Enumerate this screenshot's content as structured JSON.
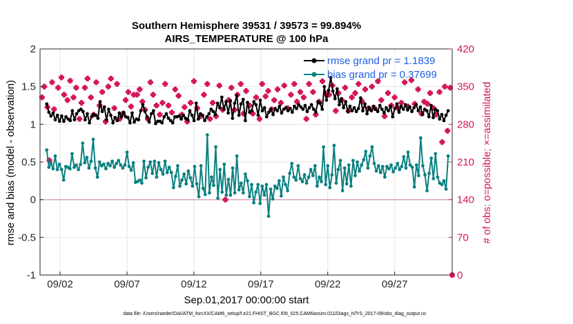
{
  "chart_data": {
    "type": "line",
    "title": "Southern Hemisphere 39531 / 39573 = 99.894%",
    "subtitle": "AIRS_TEMPERATURE @ 100 hPa",
    "xlabel": "Sep.01,2017 00:00:00 start",
    "ylabel_left": "rmse and bias (model - observation)",
    "ylabel_right": "# of obs: o=possible; ×=assimilated",
    "ylim_left": [
      -1,
      2
    ],
    "ylim_right": [
      0,
      420
    ],
    "yticks_left": [
      "-1",
      "-0.5",
      "0",
      "0.5",
      "1",
      "1.5",
      "2"
    ],
    "yticks_right": [
      "0",
      "70",
      "140",
      "210",
      "280",
      "350",
      "420"
    ],
    "xlim_days": [
      0.5,
      31.3
    ],
    "xticks": [
      {
        "label": "09/02",
        "day": 2
      },
      {
        "label": "09/07",
        "day": 7
      },
      {
        "label": "09/12",
        "day": 12
      },
      {
        "label": "09/17",
        "day": 17
      },
      {
        "label": "09/22",
        "day": 22
      },
      {
        "label": "09/27",
        "day": 27
      }
    ],
    "grid": true,
    "legend_position": "top-right",
    "colors": {
      "rmse": "#000000",
      "bias": "#0a8080",
      "obs": "#d4145a",
      "zero": "#d9a0b0"
    },
    "series": [
      {
        "name": "rmse grand pr = 1.1839",
        "values": [
          1.27,
          1.16,
          1.11,
          1.15,
          1.06,
          1.12,
          1.04,
          1.11,
          1.04,
          1.1,
          1.07,
          1.05,
          1.18,
          1.06,
          1.14,
          1.18,
          1.2,
          1.17,
          1.06,
          1.14,
          1.02,
          1.1,
          1.13,
          1.12,
          1.08,
          1.3,
          1.17,
          1.23,
          1.06,
          1.2,
          1.12,
          1.02,
          1.09,
          1.05,
          1.15,
          1.1,
          1.16,
          1.1,
          1.09,
          1.02,
          1.15,
          1.03,
          1.07,
          1.06,
          1.18,
          1.26,
          1.17,
          1.1,
          1.03,
          1.14,
          1.18,
          1.01,
          1.04,
          1.04,
          1.02,
          1.1,
          1.14,
          1.08,
          1.05,
          1.02,
          1.1,
          1.1,
          1.11,
          1.07,
          1.12,
          1.08,
          1.06,
          1.18,
          1.12,
          1.05,
          1.28,
          1.07,
          1.14,
          1.12,
          1.05,
          1.1,
          1.14,
          1.2,
          1.17,
          1.13,
          1.28,
          1.22,
          1.36,
          1.2,
          1.3,
          1.15,
          1.31,
          1.08,
          1.28,
          1.38,
          1.12,
          1.27,
          1.33,
          1.05,
          1.29,
          1.16,
          1.18,
          1.3,
          1.26,
          1.12,
          1.32,
          1.18,
          1.22,
          1.1,
          1.16,
          1.2,
          1.13,
          1.21,
          1.18,
          1.24,
          1.15,
          1.2,
          1.22,
          1.18,
          1.21,
          1.16,
          1.24,
          1.21,
          1.26,
          1.23,
          1.2,
          1.25,
          1.17,
          1.22,
          1.26,
          1.2,
          1.16,
          1.3,
          1.28,
          1.2,
          1.5,
          1.32,
          1.45,
          1.62,
          1.44,
          1.34,
          1.47,
          1.26,
          1.34,
          1.22,
          1.3,
          1.17,
          1.24,
          1.18,
          1.22,
          1.17,
          1.21,
          1.35,
          1.18,
          1.27,
          1.14,
          1.22,
          1.18,
          1.24,
          1.2,
          1.17,
          1.25,
          1.2,
          1.15,
          1.22,
          1.18,
          1.24,
          1.1,
          1.21,
          1.27,
          1.16,
          1.24,
          1.2,
          1.26,
          1.19,
          1.23,
          1.17,
          1.22,
          1.26,
          1.18,
          1.23,
          1.13,
          1.2,
          1.18,
          1.1,
          1.25,
          1.09,
          1.2,
          1.18,
          1.07,
          1.13,
          1.05,
          1.12,
          1.18
        ]
      },
      {
        "name": "bias grand pr = 0.37699",
        "values": [
          0.66,
          0.43,
          0.48,
          0.41,
          0.58,
          0.4,
          0.47,
          0.4,
          0.26,
          0.44,
          0.43,
          0.41,
          0.61,
          0.43,
          0.46,
          0.4,
          0.47,
          0.75,
          0.49,
          0.56,
          0.42,
          0.51,
          0.8,
          0.42,
          0.3,
          0.5,
          0.45,
          0.47,
          0.41,
          0.48,
          0.45,
          0.51,
          0.43,
          0.48,
          0.52,
          0.46,
          0.42,
          0.46,
          0.63,
          0.44,
          0.39,
          0.49,
          0.23,
          0.24,
          0.26,
          0.22,
          0.51,
          0.29,
          0.43,
          0.5,
          0.35,
          0.51,
          0.3,
          0.49,
          0.4,
          0.34,
          0.51,
          0.36,
          0.43,
          0.36,
          0.16,
          0.31,
          0.45,
          0.18,
          0.26,
          0.34,
          0.21,
          0.38,
          0.29,
          0.18,
          0.44,
          0.21,
          0.04,
          0.45,
          0.15,
          0.07,
          0.86,
          0.09,
          0.3,
          0.19,
          0.7,
          0.02,
          0.4,
          0.1,
          0.47,
          0.06,
          0.27,
          0.06,
          0.42,
          0.09,
          0.58,
          0.13,
          0.22,
          0.09,
          0.34,
          0.25,
          0.04,
          0.2,
          -0.04,
          0.1,
          0.2,
          -0.05,
          0.18,
          0.06,
          0.2,
          -0.22,
          0.14,
          0.01,
          0.18,
          0.15,
          0.25,
          0.05,
          0.3,
          0.2,
          0.12,
          0.35,
          0.48,
          0.3,
          0.26,
          0.45,
          0.28,
          0.24,
          0.33,
          0.22,
          0.3,
          0.4,
          0.32,
          0.45,
          0.18,
          0.3,
          0.24,
          0.7,
          0.2,
          0.45,
          0.16,
          0.33,
          0.72,
          0.22,
          0.4,
          0.52,
          0.12,
          0.42,
          0.21,
          0.46,
          0.18,
          0.52,
          0.32,
          0.5,
          0.38,
          0.46,
          0.53,
          0.64,
          0.42,
          0.58,
          0.7,
          0.48,
          0.38,
          0.45,
          0.36,
          0.44,
          0.3,
          0.44,
          0.41,
          0.46,
          0.37,
          0.42,
          0.48,
          0.4,
          0.44,
          0.57,
          0.42,
          0.63,
          0.46,
          0.43,
          0.17,
          0.46,
          0.32,
          0.82,
          0.45,
          0.33,
          0.12,
          0.35,
          0.55,
          0.28,
          0.61,
          0.3,
          0.22,
          0.2,
          0.25,
          0.14,
          0.58
        ]
      }
    ],
    "obs_assimilated": [
      [
        0.65,
        330
      ],
      [
        0.82,
        350
      ],
      [
        1.05,
        312
      ],
      [
        1.2,
        213
      ],
      [
        1.4,
        358
      ],
      [
        1.55,
        308
      ],
      [
        1.85,
        348
      ],
      [
        2.1,
        367
      ],
      [
        2.3,
        335
      ],
      [
        2.55,
        325
      ],
      [
        2.75,
        361
      ],
      [
        3.0,
        330
      ],
      [
        3.2,
        348
      ],
      [
        3.45,
        290
      ],
      [
        3.6,
        320
      ],
      [
        3.85,
        348
      ],
      [
        4.05,
        365
      ],
      [
        4.3,
        330
      ],
      [
        4.5,
        298
      ],
      [
        4.7,
        358
      ],
      [
        4.95,
        315
      ],
      [
        5.15,
        340
      ],
      [
        5.4,
        285
      ],
      [
        5.6,
        350
      ],
      [
        5.8,
        365
      ],
      [
        6.05,
        310
      ],
      [
        6.25,
        355
      ],
      [
        6.45,
        290
      ],
      [
        6.7,
        300
      ],
      [
        6.9,
        325
      ],
      [
        7.1,
        340
      ],
      [
        7.3,
        313
      ],
      [
        7.5,
        335
      ],
      [
        7.75,
        335
      ],
      [
        7.95,
        345
      ],
      [
        8.15,
        322
      ],
      [
        8.35,
        307
      ],
      [
        8.55,
        290
      ],
      [
        8.75,
        358
      ],
      [
        8.95,
        335
      ],
      [
        9.2,
        315
      ],
      [
        9.45,
        298
      ],
      [
        9.65,
        320
      ],
      [
        9.85,
        355
      ],
      [
        10.1,
        315
      ],
      [
        10.35,
        302
      ],
      [
        10.6,
        345
      ],
      [
        10.85,
        333
      ],
      [
        11.1,
        298
      ],
      [
        11.3,
        312
      ],
      [
        11.5,
        285
      ],
      [
        11.75,
        320
      ],
      [
        12.0,
        360
      ],
      [
        12.25,
        310
      ],
      [
        12.5,
        295
      ],
      [
        12.75,
        335
      ],
      [
        13.0,
        355
      ],
      [
        13.2,
        290
      ],
      [
        13.4,
        320
      ],
      [
        13.65,
        295
      ],
      [
        13.9,
        352
      ],
      [
        14.15,
        307
      ],
      [
        14.35,
        140
      ],
      [
        14.6,
        325
      ],
      [
        14.8,
        348
      ],
      [
        15.05,
        307
      ],
      [
        15.25,
        335
      ],
      [
        15.5,
        355
      ],
      [
        15.7,
        300
      ],
      [
        15.9,
        342
      ],
      [
        16.15,
        315
      ],
      [
        16.4,
        300
      ],
      [
        16.65,
        330
      ],
      [
        16.9,
        290
      ],
      [
        17.1,
        355
      ],
      [
        17.35,
        332
      ],
      [
        17.55,
        342
      ],
      [
        17.8,
        308
      ],
      [
        18.0,
        325
      ],
      [
        18.25,
        345
      ],
      [
        18.5,
        320
      ],
      [
        18.75,
        352
      ],
      [
        19.0,
        310
      ],
      [
        19.25,
        335
      ],
      [
        19.5,
        355
      ],
      [
        19.7,
        322
      ],
      [
        19.95,
        340
      ],
      [
        20.2,
        330
      ],
      [
        20.4,
        290
      ],
      [
        20.6,
        355
      ],
      [
        20.9,
        340
      ],
      [
        21.1,
        298
      ],
      [
        21.35,
        322
      ],
      [
        21.6,
        360
      ],
      [
        21.85,
        337
      ],
      [
        22.1,
        335
      ],
      [
        22.35,
        352
      ],
      [
        22.6,
        305
      ],
      [
        22.8,
        338
      ],
      [
        23.05,
        325
      ],
      [
        23.3,
        348
      ],
      [
        23.55,
        305
      ],
      [
        23.8,
        330
      ],
      [
        24.05,
        338
      ],
      [
        24.3,
        355
      ],
      [
        24.55,
        323
      ],
      [
        24.8,
        345
      ],
      [
        25.05,
        310
      ],
      [
        25.3,
        350
      ],
      [
        25.5,
        310
      ],
      [
        25.75,
        360
      ],
      [
        26.0,
        325
      ],
      [
        26.25,
        295
      ],
      [
        26.5,
        338
      ],
      [
        26.75,
        315
      ],
      [
        27.0,
        330
      ],
      [
        27.25,
        310
      ],
      [
        27.5,
        320
      ],
      [
        27.75,
        358
      ],
      [
        28.0,
        313
      ],
      [
        28.25,
        362
      ],
      [
        28.5,
        318
      ],
      [
        28.75,
        345
      ],
      [
        29.0,
        300
      ],
      [
        29.2,
        322
      ],
      [
        29.45,
        318
      ],
      [
        29.65,
        338
      ],
      [
        29.9,
        310
      ],
      [
        30.1,
        298
      ],
      [
        30.35,
        340
      ],
      [
        30.55,
        247
      ],
      [
        30.75,
        350
      ],
      [
        30.95,
        268
      ],
      [
        31.15,
        348
      ]
    ],
    "obs_possible_markers": [
      [
        31.3,
        0
      ]
    ],
    "footer": "data file: /Users/raeder/DAI/ATM_forcXX/CAM6_setup/f.e21.FHIST_BGC.f09_025.CAM6assim.011/Diags_NTrS_2017-09/obs_diag_output.nc"
  }
}
